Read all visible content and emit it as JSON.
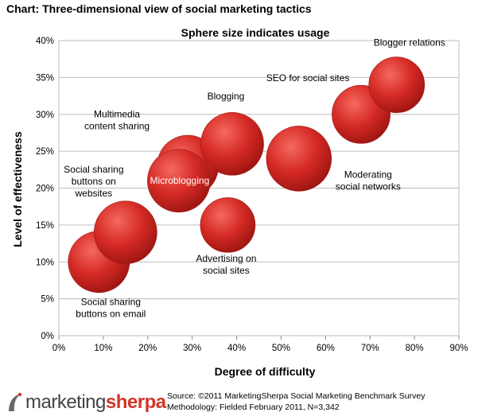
{
  "header": {
    "title": "Chart: Three-dimensional view of social marketing tactics"
  },
  "chart_data": {
    "type": "bubble",
    "title": "Sphere size indicates usage",
    "xlabel": "Degree of difficulty",
    "ylabel": "Level of effectiveness",
    "xlim": [
      0,
      90
    ],
    "ylim": [
      0,
      40
    ],
    "x_ticks": [
      0,
      10,
      20,
      30,
      40,
      50,
      60,
      70,
      80,
      90
    ],
    "y_ticks": [
      0,
      5,
      10,
      15,
      20,
      25,
      30,
      35,
      40
    ],
    "x_tick_labels": [
      "0%",
      "10%",
      "20%",
      "30%",
      "40%",
      "50%",
      "60%",
      "70%",
      "80%",
      "90%"
    ],
    "y_tick_labels": [
      "0%",
      "5%",
      "10%",
      "15%",
      "20%",
      "25%",
      "30%",
      "35%",
      "40%"
    ],
    "bubble_color": "#d52a25",
    "series": [
      {
        "name": "Social sharing buttons on email",
        "label_lines": [
          "Social sharing",
          "buttons on email"
        ],
        "x": 9,
        "y": 10,
        "usage": 40
      },
      {
        "name": "Social sharing buttons on websites",
        "label_lines": [
          "Social sharing",
          "buttons on",
          "websites"
        ],
        "x": 15,
        "y": 14,
        "usage": 42
      },
      {
        "name": "Multimedia content sharing",
        "label_lines": [
          "Multimedia",
          "content sharing"
        ],
        "x": 29,
        "y": 23,
        "usage": 40
      },
      {
        "name": "Microblogging",
        "label_lines": [
          "Microblogging"
        ],
        "x": 27,
        "y": 21,
        "usage": 42,
        "label_white": true
      },
      {
        "name": "Blogging",
        "label_lines": [
          "Blogging"
        ],
        "x": 39,
        "y": 26,
        "usage": 42
      },
      {
        "name": "Advertising on social sites",
        "label_lines": [
          "Advertising on",
          "social sites"
        ],
        "x": 38,
        "y": 15,
        "usage": 32
      },
      {
        "name": "Moderating social networks",
        "label_lines": [
          "Moderating",
          "social networks"
        ],
        "x": 54,
        "y": 24,
        "usage": 45
      },
      {
        "name": "SEO for social sites",
        "label_lines": [
          "SEO for social sites"
        ],
        "x": 68,
        "y": 30,
        "usage": 36
      },
      {
        "name": "Blogger relations",
        "label_lines": [
          "Blogger relations"
        ],
        "x": 76,
        "y": 34,
        "usage": 33
      }
    ]
  },
  "logo": {
    "part1": "marketing",
    "part2": "sherpa"
  },
  "footer": {
    "source": "Source: ©2011 MarketingSherpa Social Marketing Benchmark Survey",
    "methodology": "Methodology: Fielded February 2011, N=3,342"
  }
}
